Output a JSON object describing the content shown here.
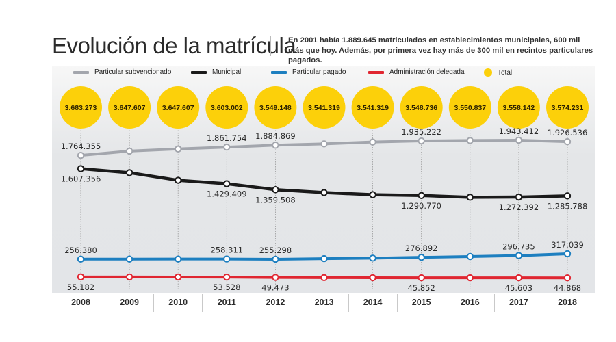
{
  "header": {
    "title": "Evolución de la matrícula",
    "subtitle": "En 2001 había 1.889.645 matriculados en establecimientos municipales, 600 mil más que hoy. Además, por primera vez hay más de 300 mil en recintos particulares pagados."
  },
  "chart_data": {
    "type": "line",
    "title": "Evolución de la matrícula",
    "xlabel": "",
    "ylabel": "",
    "grid": "vertical dotted lines per year",
    "legend_position": "top",
    "categories": [
      "2008",
      "2009",
      "2010",
      "2011",
      "2012",
      "2013",
      "2014",
      "2015",
      "2016",
      "2017",
      "2018"
    ],
    "series": [
      {
        "name": "Particular subvencionado",
        "color": "#a3a6ad",
        "values": [
          1764355,
          1815000,
          1840000,
          1861754,
          1884869,
          1900000,
          1922000,
          1935222,
          1940000,
          1943412,
          1926536
        ],
        "labels": [
          "1.764.355",
          "",
          "",
          "1.861.754",
          "1.884.869",
          "",
          "",
          "1.935.222",
          "",
          "1.943.412",
          "1.926.536"
        ],
        "label_pos": "above"
      },
      {
        "name": "Municipal",
        "color": "#1a1a1a",
        "values": [
          1607356,
          1560000,
          1470000,
          1429409,
          1359508,
          1325000,
          1300000,
          1290770,
          1270000,
          1272392,
          1285788
        ],
        "labels": [
          "1.607.356",
          "",
          "",
          "1.429.409",
          "1.359.508",
          "",
          "",
          "1.290.770",
          "",
          "1.272.392",
          "1.285.788"
        ],
        "label_pos": "below"
      },
      {
        "name": "Particular pagado",
        "color": "#1d7fc0",
        "values": [
          256380,
          257000,
          257500,
          258311,
          255298,
          262000,
          268000,
          276892,
          286000,
          296735,
          317039
        ],
        "labels": [
          "256.380",
          "",
          "",
          "258.311",
          "255.298",
          "",
          "",
          "276.892",
          "",
          "296.735",
          "317.039"
        ],
        "label_pos": "above"
      },
      {
        "name": "Administración delegada",
        "color": "#e02631",
        "values": [
          55182,
          54800,
          54200,
          53528,
          49473,
          47500,
          46800,
          45852,
          45700,
          45603,
          44868
        ],
        "labels": [
          "55.182",
          "",
          "",
          "53.528",
          "49.473",
          "",
          "",
          "45.852",
          "",
          "45.603",
          "44.868"
        ],
        "label_pos": "below"
      }
    ],
    "total": {
      "name": "Total",
      "color": "#fcd00a",
      "labels": [
        "3.683.273",
        "3.647.607",
        "3.647.607",
        "3.603.002",
        "3.549.148",
        "3.541.319",
        "3.541.319",
        "3.548.736",
        "3.550.837",
        "3.558.142",
        "3.574.231"
      ],
      "values": [
        3683273,
        3647607,
        3647607,
        3603002,
        3549148,
        3541319,
        3541319,
        3548736,
        3550837,
        3558142,
        3574231
      ]
    }
  },
  "legend": [
    {
      "label": "Particular subvencionado",
      "color": "#a3a6ad",
      "kind": "line"
    },
    {
      "label": "Municipal",
      "color": "#1a1a1a",
      "kind": "line"
    },
    {
      "label": "Particular pagado",
      "color": "#1d7fc0",
      "kind": "line"
    },
    {
      "label": "Administración delegada",
      "color": "#e02631",
      "kind": "line"
    },
    {
      "label": "Total",
      "color": "#fcd00a",
      "kind": "dot"
    }
  ]
}
